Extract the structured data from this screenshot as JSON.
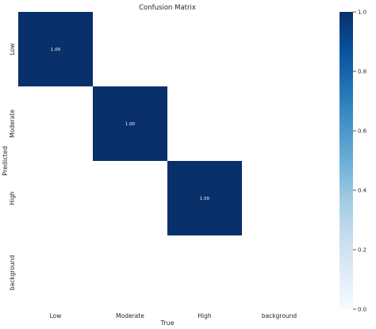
{
  "chart_data": {
    "type": "heatmap",
    "title": "Confusion Matrix",
    "xlabel": "True",
    "ylabel": "Predicted",
    "x_categories": [
      "Low",
      "Moderate",
      "High",
      "background"
    ],
    "y_categories": [
      "Low",
      "Moderate",
      "High",
      "background"
    ],
    "values": [
      [
        1.0,
        null,
        null,
        null
      ],
      [
        null,
        1.0,
        null,
        null
      ],
      [
        null,
        null,
        1.0,
        null
      ],
      [
        null,
        null,
        null,
        null
      ]
    ],
    "cell_labels": [
      [
        "1.00",
        "",
        "",
        ""
      ],
      [
        "",
        "1.00",
        "",
        ""
      ],
      [
        "",
        "",
        "1.00",
        ""
      ],
      [
        "",
        "",
        "",
        ""
      ]
    ],
    "colorbar": {
      "range": [
        0.0,
        1.0
      ],
      "ticks": [
        "0.0",
        "0.2",
        "0.4",
        "0.6",
        "0.8",
        "1.0"
      ],
      "colormap": "Blues",
      "color_low": "#f7fbff",
      "color_high": "#08306b"
    }
  }
}
